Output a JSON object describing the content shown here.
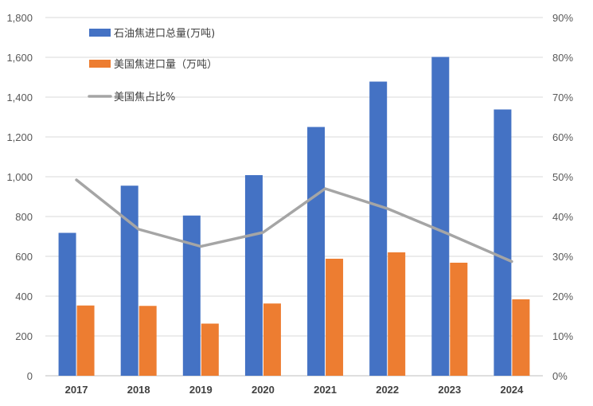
{
  "chart_data": {
    "type": "bar",
    "categories": [
      "2017",
      "2018",
      "2019",
      "2020",
      "2021",
      "2022",
      "2023",
      "2024"
    ],
    "series": [
      {
        "name": "石油焦进口总量(万吨)",
        "type": "bar",
        "axis": "left",
        "color": "#4472C4",
        "values": [
          718,
          955,
          805,
          1008,
          1250,
          1478,
          1602,
          1338
        ]
      },
      {
        "name": "美国焦进口量（万吨）",
        "type": "bar",
        "axis": "left",
        "color": "#ED7D31",
        "values": [
          353,
          351,
          262,
          363,
          588,
          620,
          568,
          384
        ]
      },
      {
        "name": "美国焦占比%",
        "type": "line",
        "axis": "right",
        "color": "#A5A5A5",
        "values": [
          49.2,
          36.8,
          32.5,
          36.0,
          47.0,
          42.0,
          35.5,
          28.7
        ]
      }
    ],
    "y_left": {
      "min": 0,
      "max": 1800,
      "step": 200,
      "ticks": [
        "0",
        "200",
        "400",
        "600",
        "800",
        "1,000",
        "1,200",
        "1,400",
        "1,600",
        "1,800"
      ]
    },
    "y_right": {
      "min": 0,
      "max": 90,
      "step": 10,
      "ticks": [
        "0%",
        "10%",
        "20%",
        "30%",
        "40%",
        "50%",
        "60%",
        "70%",
        "80%",
        "90%"
      ]
    },
    "grid": true,
    "legend_position": "top-left"
  }
}
